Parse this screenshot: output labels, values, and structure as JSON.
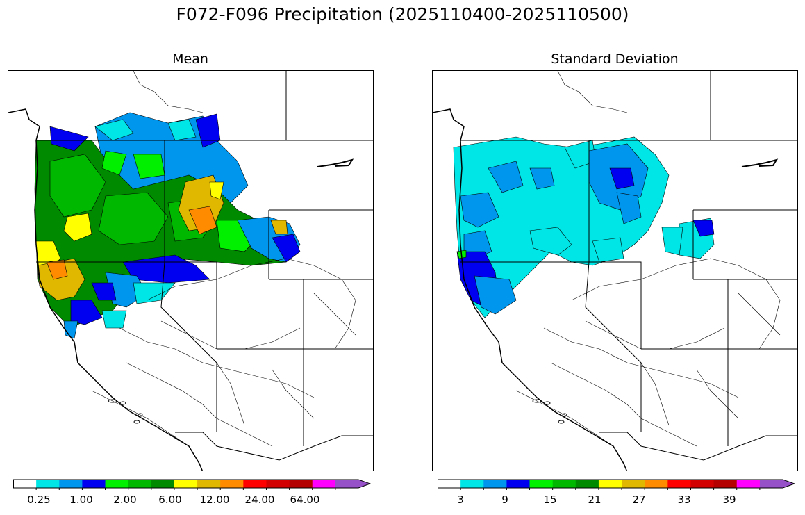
{
  "title": "F072-F096 Precipitation (2025110400-2025110500)",
  "panels": [
    {
      "title": "Mean"
    },
    {
      "title": "Standard Deviation"
    }
  ],
  "colorbars": {
    "colors": [
      "#ffffff",
      "#00e5e5",
      "#0096ee",
      "#0000f0",
      "#00f000",
      "#00b800",
      "#008a00",
      "#ffff00",
      "#e0b800",
      "#ff8c00",
      "#ff0000",
      "#d20000",
      "#b40000",
      "#ff00ff",
      "#9650c8"
    ],
    "mean_labels": [
      "0.25",
      "1.00",
      "2.00",
      "6.00",
      "12.00",
      "24.00",
      "64.00"
    ],
    "std_labels": [
      "3",
      "9",
      "15",
      "21",
      "27",
      "33",
      "39"
    ]
  },
  "colors": {
    "cyan": "#00e5e5",
    "lightblue": "#0096ee",
    "blue": "#0000f0",
    "lime": "#00f000",
    "green": "#00b800",
    "darkgreen": "#008a00",
    "yellow": "#ffff00",
    "gold": "#e0b800",
    "orange": "#ff8c00"
  }
}
